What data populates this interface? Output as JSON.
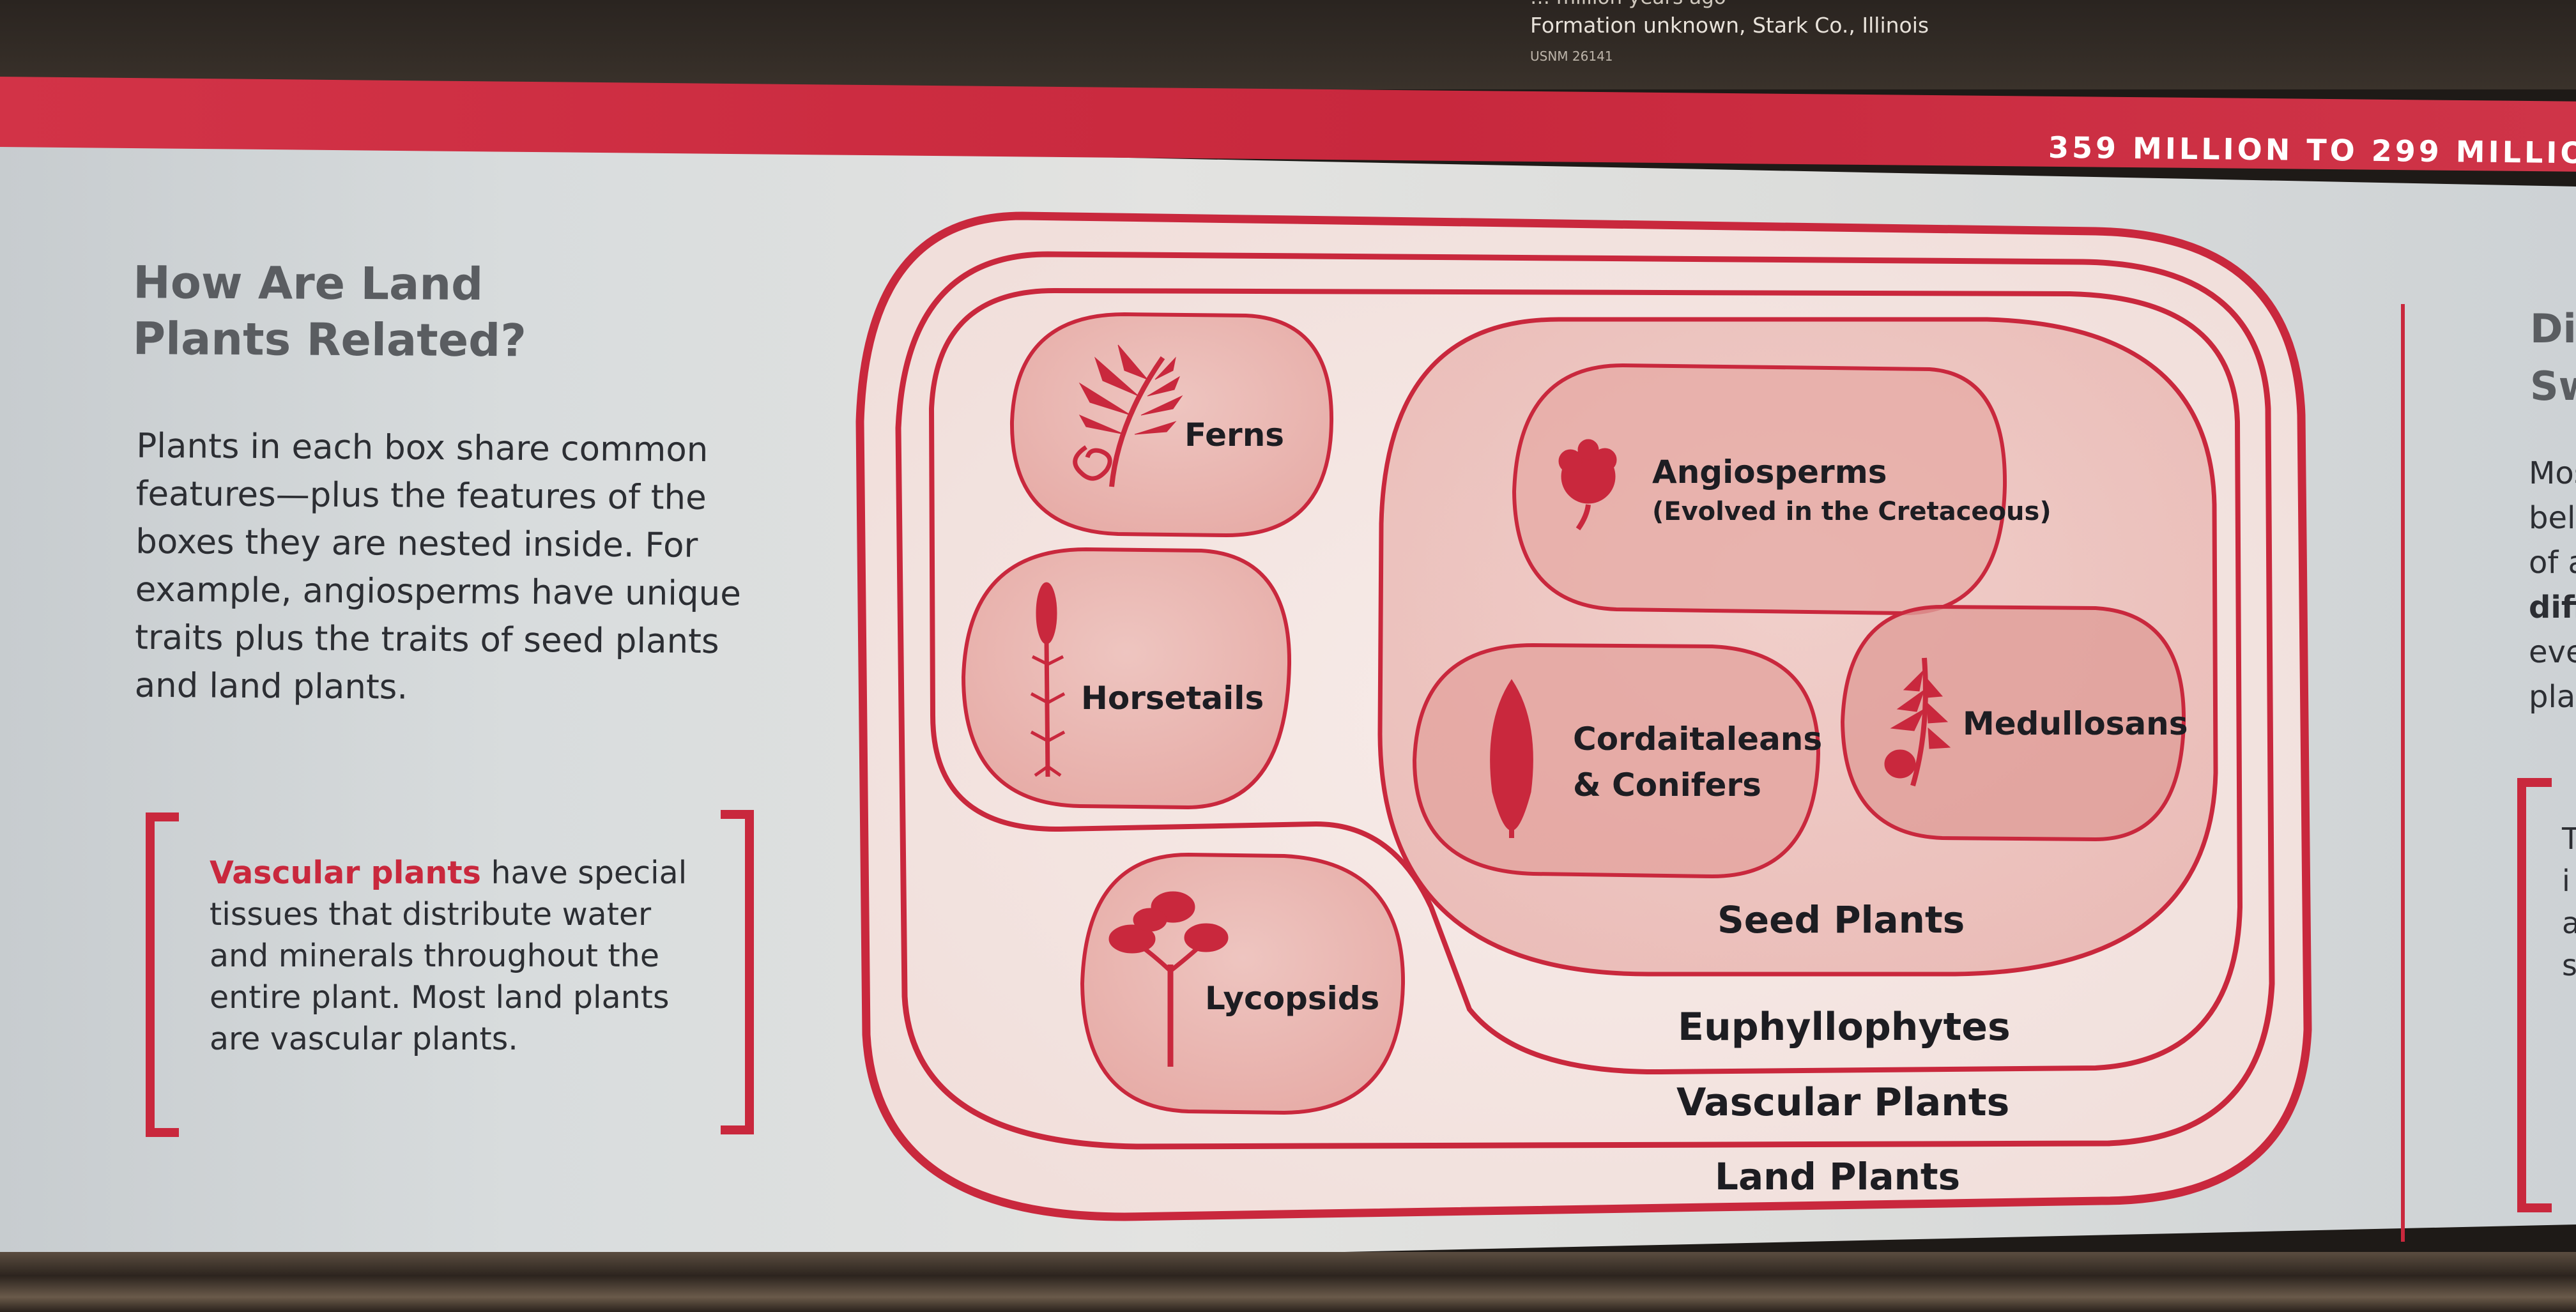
{
  "header": {
    "line1": "… million years ago",
    "line2": "Formation unknown, Stark Co., Illinois",
    "line3": "USNM 26141",
    "band_text": "359 MILLION TO 299 MILLIO"
  },
  "left": {
    "title_line1": "How Are Land",
    "title_line2": "Plants Related?",
    "body_lines": [
      "Plants in each box share common",
      "features—plus the features of the",
      "boxes they are nested inside. For",
      "example, angiosperms have unique",
      "traits plus the traits of seed plants",
      "and land plants."
    ],
    "callout_term": "Vascular plants",
    "callout_first_rest": " have special",
    "callout_lines": [
      "tissues that distribute water",
      "and minerals throughout the",
      "entire plant. Most land plants",
      "are vascular plants."
    ]
  },
  "diagram": {
    "groups": {
      "land_plants": "Land Plants",
      "vascular_plants": "Vascular Plants",
      "euphyllophytes": "Euphyllophytes",
      "seed_plants": "Seed Plants"
    },
    "taxa": {
      "ferns": "Ferns",
      "horsetails": "Horsetails",
      "lycopsids": "Lycopsids",
      "angiosperms": "Angiosperms",
      "angiosperms_note": "(Evolved in the Cretaceous)",
      "cordaitaleans_line1": "Cordaitaleans",
      "cordaitaleans_line2": "& Conifers",
      "medullosans": "Medullosans"
    },
    "colors": {
      "accent": "#c9283d",
      "fill_light": "#f3e4e1",
      "fill_inner": "#eab8b4"
    }
  },
  "right": {
    "title_lines": [
      "Div",
      "Sw"
    ],
    "body_lines": [
      "Mos",
      "belo",
      "of a",
      "diff",
      "eve",
      "plan"
    ],
    "callout_lines": [
      "T",
      "i",
      "a",
      "s"
    ]
  }
}
